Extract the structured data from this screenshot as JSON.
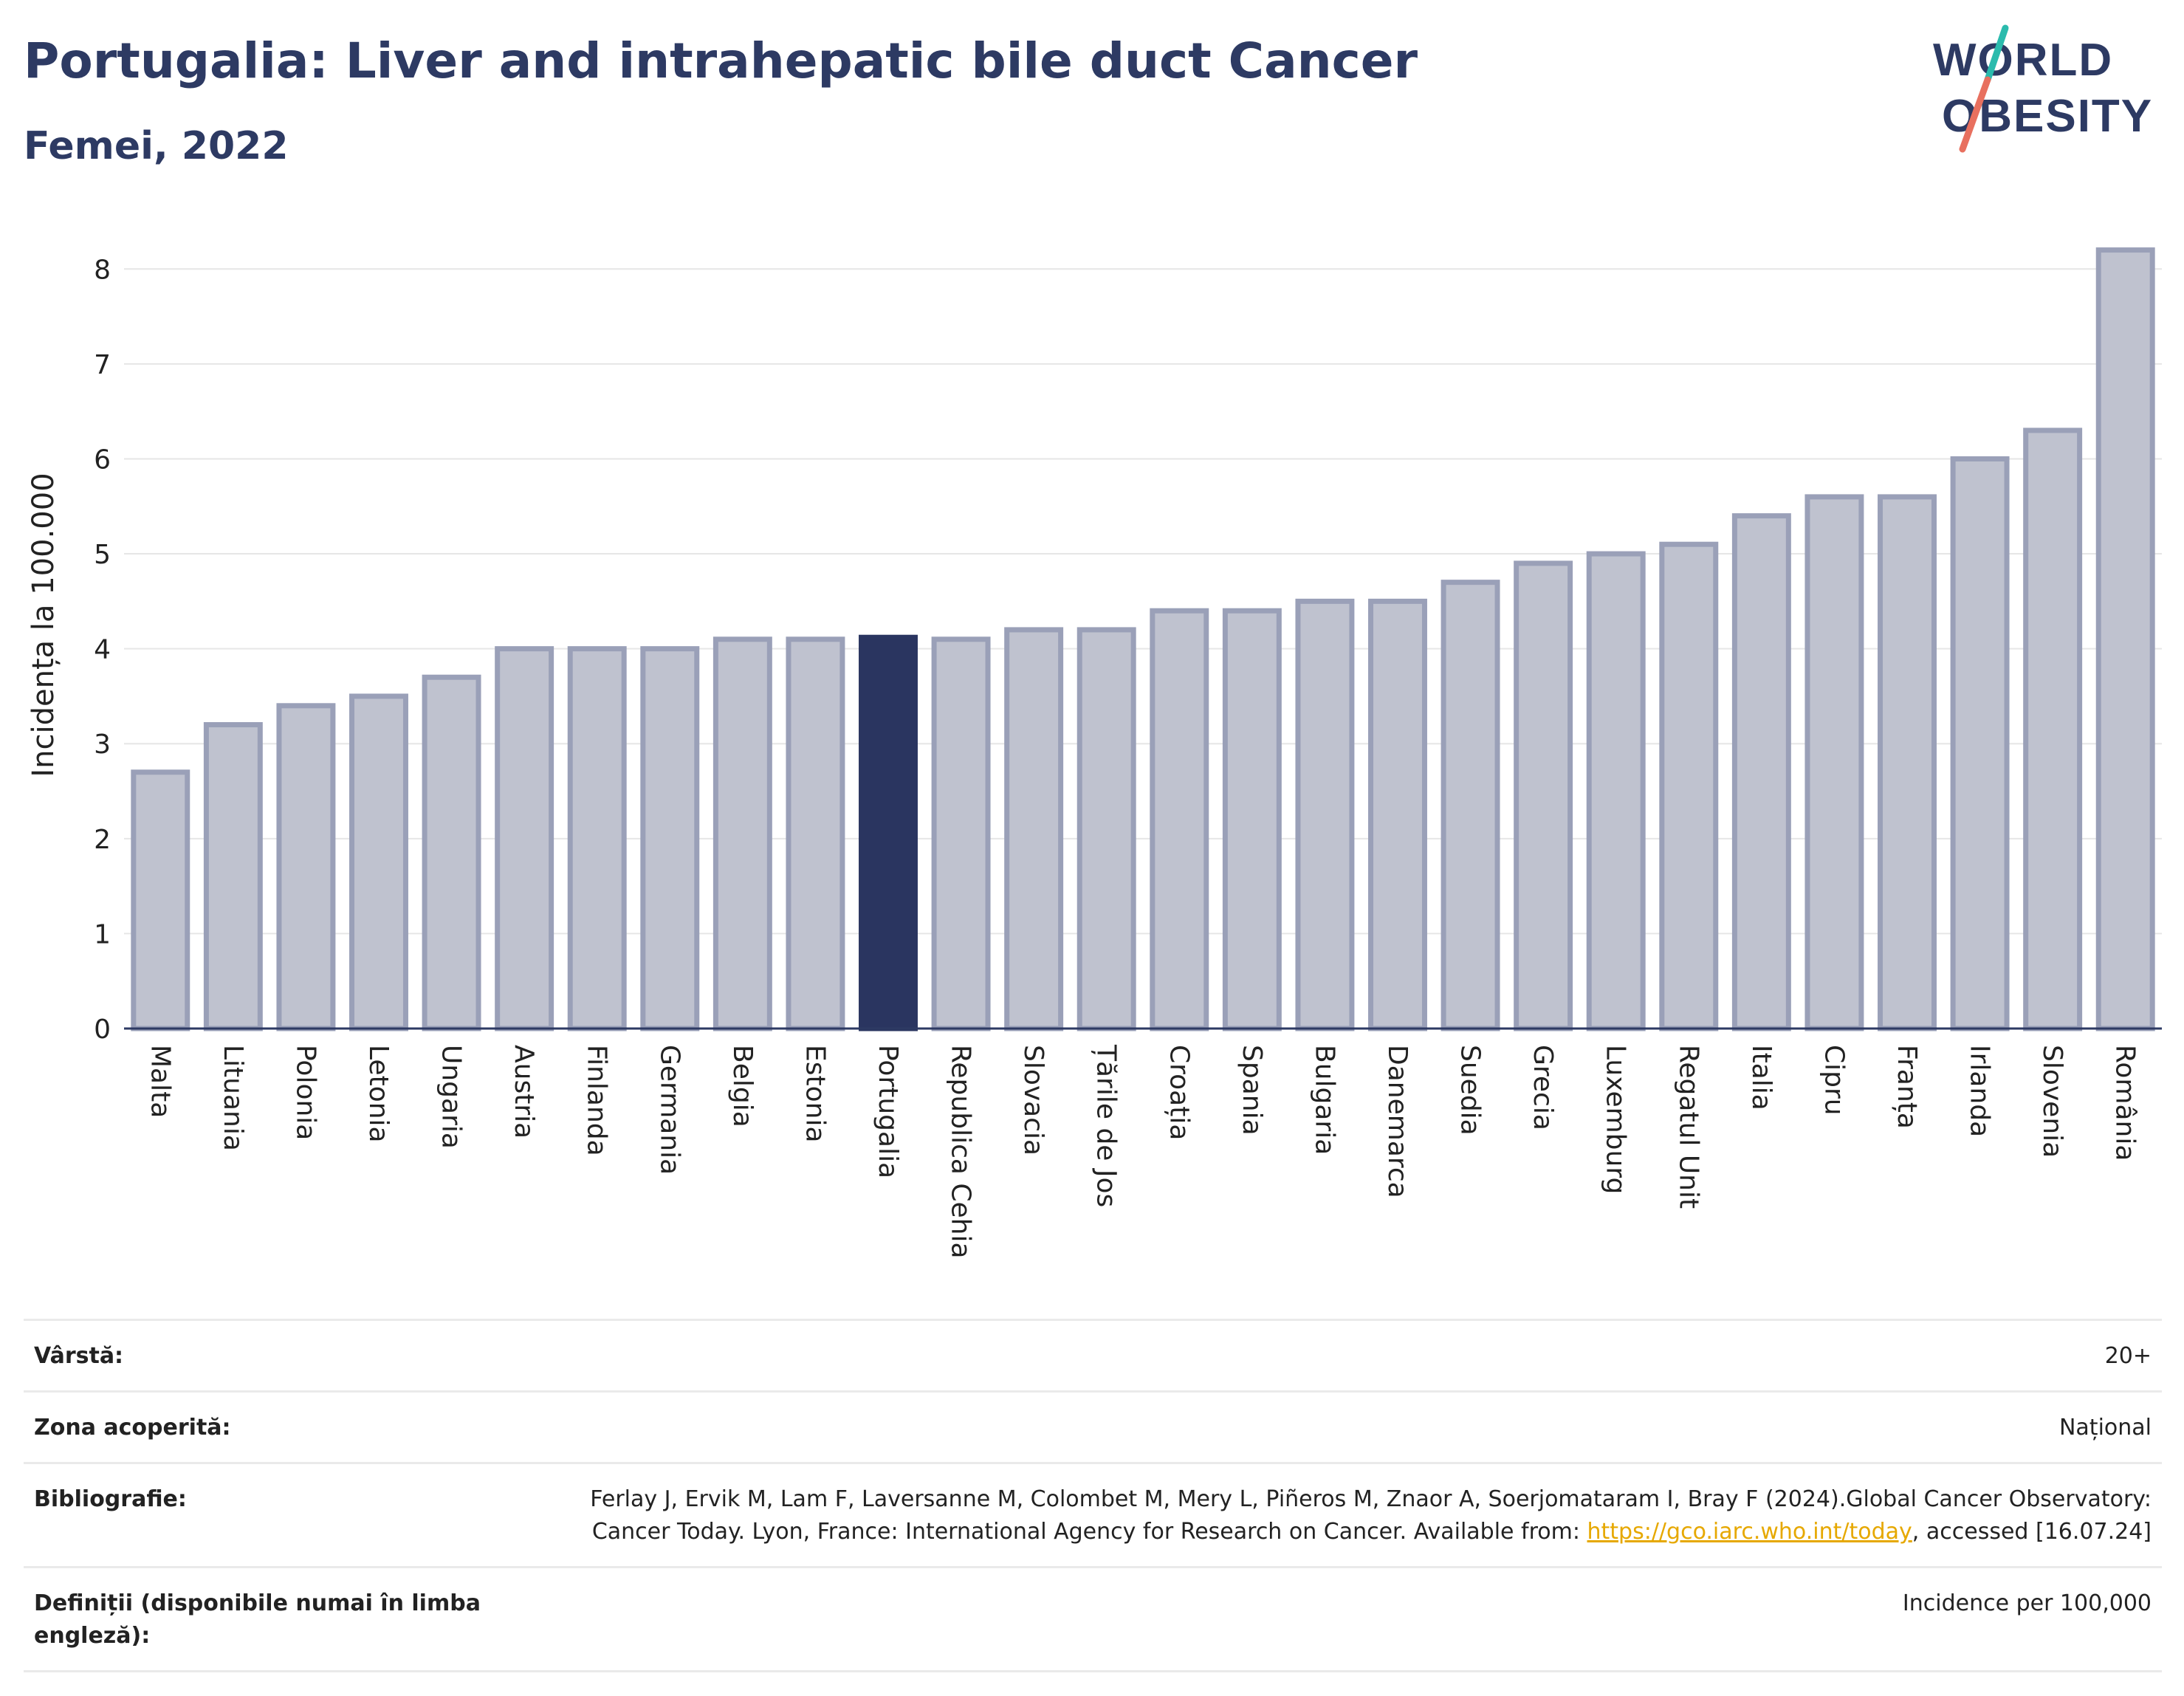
{
  "header": {
    "title": "Portugalia: Liver and intrahepatic bile duct Cancer",
    "subtitle": "Femei, 2022"
  },
  "logo": {
    "line1": "WORLD",
    "line2": "OBESITY",
    "slash_color_top": "#2bbbad",
    "slash_color_bottom": "#e8705f",
    "text_color": "#2d3a63"
  },
  "chart_data": {
    "type": "bar",
    "ylabel": "Incidența la 100.000",
    "ylim": [
      0,
      8.5
    ],
    "yticks": [
      0,
      1,
      2,
      3,
      4,
      5,
      6,
      7,
      8
    ],
    "grid": true,
    "highlight": "Portugalia",
    "colors": {
      "bar_fill": "#bfc2cf",
      "bar_edge": "#9aa0b8",
      "highlight_fill": "#2a3560",
      "grid": "#e6e6e6",
      "axis": "#2d3a63"
    },
    "categories": [
      "Malta",
      "Lituania",
      "Polonia",
      "Letonia",
      "Ungaria",
      "Austria",
      "Finlanda",
      "Germania",
      "Belgia",
      "Estonia",
      "Portugalia",
      "Republica Cehia",
      "Slovacia",
      "Țările de Jos",
      "Croația",
      "Spania",
      "Bulgaria",
      "Danemarca",
      "Suedia",
      "Grecia",
      "Luxemburg",
      "Regatul Unit",
      "Italia",
      "Cipru",
      "Franța",
      "Irlanda",
      "Slovenia",
      "România"
    ],
    "values": [
      2.7,
      3.2,
      3.4,
      3.5,
      3.7,
      4.0,
      4.0,
      4.0,
      4.1,
      4.1,
      4.12,
      4.1,
      4.2,
      4.2,
      4.4,
      4.4,
      4.5,
      4.5,
      4.7,
      4.9,
      5.0,
      5.1,
      5.4,
      5.6,
      5.6,
      6.0,
      6.3,
      8.2
    ]
  },
  "info": {
    "rows": [
      {
        "label": "Vârstă:",
        "value": "20+"
      },
      {
        "label": "Zona acoperită:",
        "value": "Național"
      },
      {
        "label": "Bibliografie:",
        "value_before": "Ferlay J, Ervik M, Lam F, Laversanne M, Colombet M, Mery L, Piñeros M, Znaor A, Soerjomataram I, Bray F (2024).Global Cancer Observatory: Cancer Today. Lyon, France: International Agency for Research on Cancer. Available from: ",
        "link": "https://gco.iarc.who.int/today",
        "value_after": ", accessed [16.07.24]"
      },
      {
        "label": "Definiții (disponibile numai în limba engleză):",
        "value": "Incidence per 100,000"
      }
    ]
  }
}
